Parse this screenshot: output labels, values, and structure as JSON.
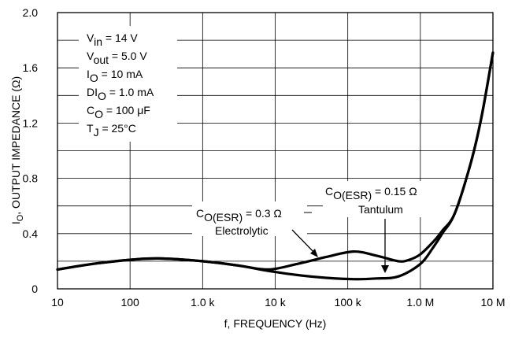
{
  "chart_data": {
    "type": "line",
    "xscale": "log",
    "xlim": [
      10,
      10000000
    ],
    "ylim": [
      0,
      2.0
    ],
    "grid": true,
    "xlabel": "f, FREQUENCY (Hz)",
    "ylabel": {
      "prefix": "I",
      "sub": "O",
      "text": ", OUTPUT IMPEDANCE (Ω)"
    },
    "xticks": [
      {
        "value": 10,
        "label": "10"
      },
      {
        "value": 100,
        "label": "100"
      },
      {
        "value": 1000,
        "label": "1.0 k"
      },
      {
        "value": 10000,
        "label": "10 k"
      },
      {
        "value": 100000,
        "label": "100 k"
      },
      {
        "value": 1000000,
        "label": "1.0 M"
      },
      {
        "value": 10000000,
        "label": "10 M"
      }
    ],
    "yticks": [
      {
        "value": 0,
        "label": "0"
      },
      {
        "value": 0.4,
        "label": "0.4"
      },
      {
        "value": 0.8,
        "label": "0.8"
      },
      {
        "value": 1.2,
        "label": "1.2"
      },
      {
        "value": 1.6,
        "label": "1.6"
      },
      {
        "value": 2.0,
        "label": "2.0"
      }
    ],
    "conditions": [
      {
        "base": "V",
        "sub": "in",
        "rest": " = 14 V"
      },
      {
        "base": "V",
        "sub": "out",
        "rest": " = 5.0 V"
      },
      {
        "base": "I",
        "sub": "O",
        "rest": " = 10 mA"
      },
      {
        "base": "DI",
        "sub": "O",
        "rest": " = 1.0 mA"
      },
      {
        "base": "C",
        "sub": "O",
        "rest": " = 100 μF"
      },
      {
        "base": "T",
        "sub": "J",
        "rest": " = 25°C"
      }
    ],
    "series": [
      {
        "name": "Electrolytic",
        "label": {
          "base": "C",
          "sub": "O(ESR)",
          "rest": " = 0.3 Ω"
        },
        "x": [
          10,
          30,
          100,
          250,
          1000,
          3000,
          8000,
          20000,
          50000,
          120000,
          250000,
          500000,
          700000,
          1000000,
          1500000,
          2000000,
          3000000,
          5000000,
          7000000,
          10000000
        ],
        "y": [
          0.14,
          0.18,
          0.21,
          0.22,
          0.2,
          0.17,
          0.14,
          0.18,
          0.23,
          0.27,
          0.24,
          0.2,
          0.21,
          0.25,
          0.34,
          0.42,
          0.55,
          0.92,
          1.25,
          1.71
        ]
      },
      {
        "name": "Tantulum",
        "label": {
          "base": "C",
          "sub": "O(ESR)",
          "rest": " = 0.15 Ω"
        },
        "x": [
          10,
          30,
          100,
          250,
          1000,
          3000,
          8000,
          20000,
          50000,
          120000,
          250000,
          500000,
          1000000,
          1500000,
          2000000,
          3000000,
          5000000,
          7000000,
          10000000
        ],
        "y": [
          0.14,
          0.18,
          0.21,
          0.22,
          0.2,
          0.17,
          0.13,
          0.1,
          0.08,
          0.07,
          0.075,
          0.09,
          0.18,
          0.3,
          0.4,
          0.55,
          0.92,
          1.25,
          1.71
        ]
      }
    ]
  }
}
